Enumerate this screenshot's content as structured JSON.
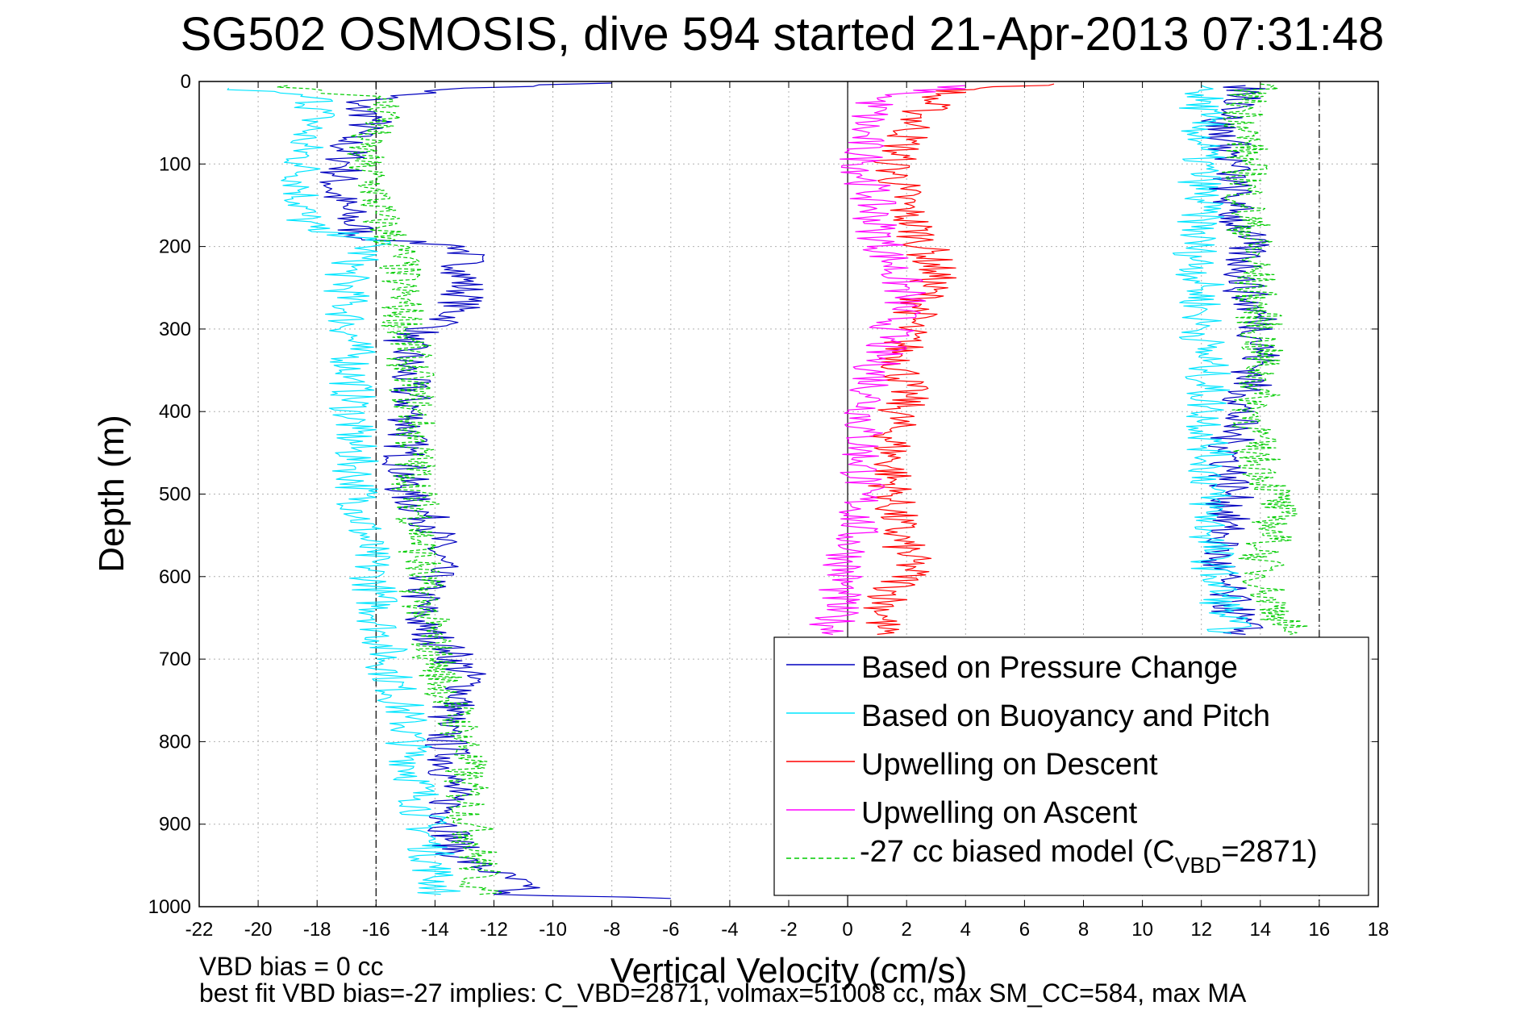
{
  "chart_data": {
    "type": "line",
    "title": "SG502 OSMOSIS, dive 594 started 21-Apr-2013 07:31:48",
    "xlabel": "Vertical Velocity (cm/s)",
    "ylabel": "Depth (m)",
    "xlim": [
      -22,
      18
    ],
    "ylim": [
      1000,
      0
    ],
    "y_reversed": true,
    "grid": true,
    "xticks": [
      "-22",
      "-20",
      "-18",
      "-16",
      "-14",
      "-12",
      "-10",
      "-8",
      "-6",
      "-4",
      "-2",
      "0",
      "2",
      "4",
      "6",
      "8",
      "10",
      "12",
      "14",
      "16",
      "18"
    ],
    "yticks": [
      "0",
      "100",
      "200",
      "300",
      "400",
      "500",
      "600",
      "700",
      "800",
      "900",
      "1000"
    ],
    "reference_lines": [
      {
        "x": -16,
        "style": "dash-dot"
      },
      {
        "x": 0,
        "style": "solid"
      },
      {
        "x": 16,
        "style": "dash-dot"
      }
    ],
    "legend_position": "bottom-right",
    "series": [
      {
        "name": "Based on Pressure Change",
        "color": "#0000bf",
        "branch": "descent",
        "points": [
          [
            -8,
            2
          ],
          [
            -13,
            8
          ],
          [
            -17,
            25
          ],
          [
            -16,
            45
          ],
          [
            -17,
            70
          ],
          [
            -17,
            100
          ],
          [
            -17.5,
            130
          ],
          [
            -17,
            160
          ],
          [
            -16.5,
            190
          ],
          [
            -13,
            200
          ],
          [
            -13,
            230
          ],
          [
            -13,
            260
          ],
          [
            -13.5,
            290
          ],
          [
            -15,
            310
          ],
          [
            -15,
            350
          ],
          [
            -14.8,
            400
          ],
          [
            -15,
            450
          ],
          [
            -15,
            500
          ],
          [
            -14,
            540
          ],
          [
            -14,
            590
          ],
          [
            -14.5,
            620
          ],
          [
            -14.5,
            660
          ],
          [
            -13.5,
            690
          ],
          [
            -12.8,
            730
          ],
          [
            -13.8,
            780
          ],
          [
            -13.5,
            820
          ],
          [
            -13.5,
            860
          ],
          [
            -13.5,
            900
          ],
          [
            -13.2,
            940
          ],
          [
            -11,
            975
          ],
          [
            -12,
            985
          ],
          [
            -6,
            990
          ]
        ]
      },
      {
        "name": "Based on Buoyancy and Pitch",
        "color": "#00e5ff",
        "branch": "descent",
        "points": [
          [
            -21,
            8
          ],
          [
            -18,
            20
          ],
          [
            -18,
            45
          ],
          [
            -18.5,
            70
          ],
          [
            -18.5,
            100
          ],
          [
            -18.5,
            130
          ],
          [
            -18.5,
            160
          ],
          [
            -18.3,
            180
          ],
          [
            -16,
            190
          ],
          [
            -17,
            230
          ],
          [
            -17,
            280
          ],
          [
            -16.8,
            320
          ],
          [
            -16.8,
            360
          ],
          [
            -16.8,
            420
          ],
          [
            -16.7,
            470
          ],
          [
            -16.5,
            520
          ],
          [
            -16.3,
            570
          ],
          [
            -16,
            620
          ],
          [
            -15.8,
            670
          ],
          [
            -15.5,
            720
          ],
          [
            -15,
            770
          ],
          [
            -14.8,
            820
          ],
          [
            -14.5,
            870
          ],
          [
            -14.2,
            920
          ],
          [
            -14,
            960
          ],
          [
            -13.8,
            985
          ]
        ]
      },
      {
        "name": "Upwelling on Descent",
        "color": "#ff0000",
        "branch": "descent",
        "points": [
          [
            7,
            3
          ],
          [
            4.5,
            8
          ],
          [
            3,
            15
          ],
          [
            2.5,
            40
          ],
          [
            2,
            70
          ],
          [
            1.5,
            100
          ],
          [
            1.8,
            130
          ],
          [
            2,
            160
          ],
          [
            2.5,
            190
          ],
          [
            3,
            230
          ],
          [
            2.5,
            270
          ],
          [
            2,
            300
          ],
          [
            1.8,
            330
          ],
          [
            2,
            380
          ],
          [
            1.5,
            420
          ],
          [
            1.5,
            460
          ],
          [
            1.5,
            500
          ],
          [
            1.7,
            550
          ],
          [
            2.2,
            590
          ],
          [
            1.5,
            620
          ],
          [
            1.2,
            650
          ],
          [
            1,
            670
          ]
        ]
      },
      {
        "name": "Upwelling on Ascent",
        "color": "#ff00ff",
        "branch": "ascent",
        "points": [
          [
            4,
            5
          ],
          [
            1,
            20
          ],
          [
            0.5,
            60
          ],
          [
            0.5,
            100
          ],
          [
            0.8,
            140
          ],
          [
            1,
            180
          ],
          [
            1.5,
            220
          ],
          [
            2,
            260
          ],
          [
            1.5,
            300
          ],
          [
            1,
            340
          ],
          [
            0.8,
            380
          ],
          [
            0.5,
            420
          ],
          [
            0.5,
            460
          ],
          [
            0.5,
            500
          ],
          [
            0.3,
            540
          ],
          [
            0,
            580
          ],
          [
            -0.3,
            620
          ],
          [
            -0.5,
            660
          ],
          [
            -0.5,
            670
          ]
        ]
      },
      {
        "name": "-27 cc biased model (C_VBD=2871)",
        "color": "#00cc00",
        "branch": "descent",
        "points": [
          [
            -19,
            5
          ],
          [
            -16,
            20
          ],
          [
            -15.5,
            40
          ],
          [
            -16.5,
            70
          ],
          [
            -16.5,
            100
          ],
          [
            -16,
            130
          ],
          [
            -16,
            160
          ],
          [
            -15.5,
            190
          ],
          [
            -15.2,
            210
          ],
          [
            -15.2,
            250
          ],
          [
            -15,
            300
          ],
          [
            -14.8,
            360
          ],
          [
            -14.7,
            420
          ],
          [
            -14.7,
            480
          ],
          [
            -14.5,
            540
          ],
          [
            -14.5,
            600
          ],
          [
            -14.3,
            650
          ],
          [
            -14,
            700
          ],
          [
            -13.5,
            750
          ],
          [
            -13,
            800
          ],
          [
            -13,
            850
          ],
          [
            -12.8,
            900
          ],
          [
            -12.5,
            950
          ],
          [
            -12.5,
            985
          ]
        ]
      },
      {
        "name": "",
        "color": "#0000bf",
        "branch": "ascent",
        "points": [
          [
            13.5,
            5
          ],
          [
            13.5,
            30
          ],
          [
            12.5,
            50
          ],
          [
            13,
            80
          ],
          [
            13,
            110
          ],
          [
            13,
            150
          ],
          [
            13.5,
            190
          ],
          [
            13.5,
            230
          ],
          [
            13.5,
            260
          ],
          [
            14,
            290
          ],
          [
            14,
            330
          ],
          [
            13.5,
            380
          ],
          [
            13,
            430
          ],
          [
            13,
            470
          ],
          [
            13,
            500
          ],
          [
            12.8,
            540
          ],
          [
            12.5,
            580
          ],
          [
            12.8,
            620
          ],
          [
            13.2,
            650
          ],
          [
            13.5,
            670
          ]
        ]
      },
      {
        "name": "",
        "color": "#00e5ff",
        "branch": "ascent",
        "points": [
          [
            12,
            5
          ],
          [
            12,
            40
          ],
          [
            12,
            80
          ],
          [
            12,
            120
          ],
          [
            12,
            160
          ],
          [
            11.8,
            200
          ],
          [
            12,
            250
          ],
          [
            12,
            300
          ],
          [
            12.2,
            350
          ],
          [
            12.2,
            400
          ],
          [
            12.3,
            450
          ],
          [
            12.3,
            500
          ],
          [
            12.3,
            550
          ],
          [
            12.5,
            600
          ],
          [
            12.8,
            640
          ],
          [
            13,
            670
          ]
        ]
      },
      {
        "name": "",
        "color": "#00cc00",
        "branch": "ascent",
        "points": [
          [
            14,
            3
          ],
          [
            13.5,
            20
          ],
          [
            13.5,
            60
          ],
          [
            13.5,
            100
          ],
          [
            13.5,
            150
          ],
          [
            13.7,
            200
          ],
          [
            13.8,
            250
          ],
          [
            14,
            300
          ],
          [
            14,
            350
          ],
          [
            13.8,
            400
          ],
          [
            13.8,
            450
          ],
          [
            14.5,
            500
          ],
          [
            14.5,
            540
          ],
          [
            14,
            580
          ],
          [
            14.2,
            620
          ],
          [
            14.8,
            650
          ],
          [
            15,
            670
          ]
        ]
      }
    ],
    "annotations": [
      "VBD bias = 0 cc",
      "best fit VBD bias=-27 implies: C_VBD=2871, volmax=51008 cc, max SM_CC=584, max MA"
    ]
  },
  "legend": {
    "items": [
      {
        "label": "Based on Pressure Change",
        "color": "#0000bf"
      },
      {
        "label": "Based on Buoyancy and Pitch",
        "color": "#00e5ff"
      },
      {
        "label": "Upwelling on Descent",
        "color": "#ff0000"
      },
      {
        "label": "Upwelling on Ascent",
        "color": "#ff00ff"
      },
      {
        "label_main": "-27 cc biased model (C",
        "label_sub": "VBD",
        "label_tail": "=2871)",
        "color": "#00cc00"
      }
    ]
  },
  "footer": {
    "line1": "VBD bias = 0 cc",
    "line2": "best fit VBD bias=-27 implies: C_VBD=2871, volmax=51008 cc, max SM_CC=584, max MA"
  }
}
